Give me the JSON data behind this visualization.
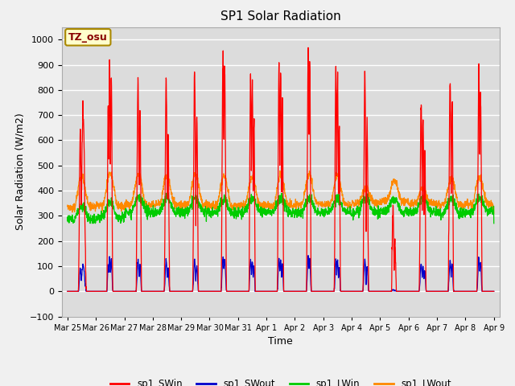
{
  "title": "SP1 Solar Radiation",
  "xlabel": "Time",
  "ylabel": "Solar Radiation (W/m2)",
  "ylim": [
    -100,
    1050
  ],
  "background_color": "#dcdcdc",
  "plot_bg_color": "#dcdcdc",
  "grid_color": "#ffffff",
  "fig_facecolor": "#f0f0f0",
  "annotation_text": "TZ_osu",
  "annotation_bg": "#ffffcc",
  "annotation_border": "#aa8800",
  "colors": {
    "sp1_SWin": "#ff0000",
    "sp1_SWout": "#0000cc",
    "sp1_LWin": "#00cc00",
    "sp1_LWout": "#ff8800"
  },
  "x_tick_labels": [
    "Mar 25",
    "Mar 26",
    "Mar 27",
    "Mar 28",
    "Mar 29",
    "Mar 30",
    "Mar 31",
    "Apr 1",
    "Apr 2",
    "Apr 3",
    "Apr 4",
    "Apr 5",
    "Apr 6",
    "Apr 7",
    "Apr 8",
    "Apr 9"
  ],
  "yticks": [
    -100,
    0,
    100,
    200,
    300,
    400,
    500,
    600,
    700,
    800,
    900,
    1000
  ],
  "num_days": 15,
  "points_per_day": 144
}
